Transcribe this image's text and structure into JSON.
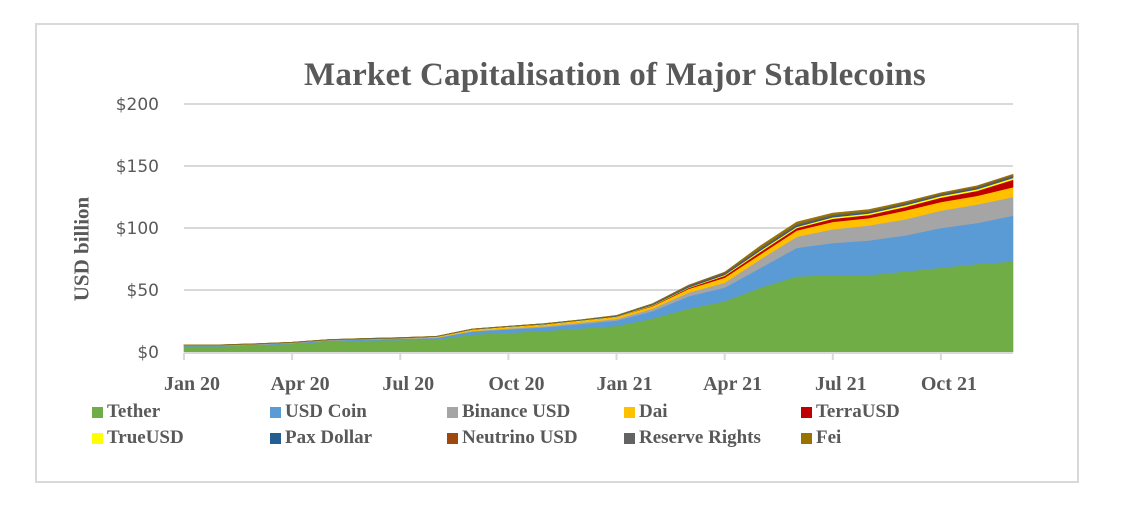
{
  "chart_data": {
    "type": "area",
    "stacked": true,
    "title": "Market Capitalisation of Major Stablecoins",
    "xlabel": "",
    "ylabel": "USD billion",
    "ylim": [
      0,
      200
    ],
    "yticks": [
      0,
      50,
      100,
      150,
      200
    ],
    "ytick_labels": [
      "$0",
      "$50",
      "$100",
      "$150",
      "$200"
    ],
    "grid": true,
    "legend_position": "bottom",
    "x": [
      "Jan 20",
      "Feb 20",
      "Mar 20",
      "Apr 20",
      "May 20",
      "Jun 20",
      "Jul 20",
      "Aug 20",
      "Sep 20",
      "Oct 20",
      "Nov 20",
      "Dec 20",
      "Jan 21",
      "Feb 21",
      "Mar 21",
      "Apr 21",
      "May 21",
      "Jun 21",
      "Jul 21",
      "Aug 21",
      "Sep 21",
      "Oct 21",
      "Nov 21",
      "Dec 21"
    ],
    "xtick_labels": [
      "Jan 20",
      "Apr 20",
      "Jul 20",
      "Oct 20",
      "Jan 21",
      "Apr 21",
      "Jul 21",
      "Oct 21"
    ],
    "xtick_every": 3,
    "series": [
      {
        "name": "Tether",
        "color": "#70ad47",
        "values": [
          4.6,
          4.6,
          5.5,
          6.5,
          8.5,
          9.2,
          9.6,
          10,
          14,
          15.5,
          17,
          19,
          21,
          27,
          35,
          41,
          52,
          61,
          62,
          62,
          65,
          68,
          71,
          73
        ]
      },
      {
        "name": "USD Coin",
        "color": "#5b9bd5",
        "values": [
          0.5,
          0.5,
          0.5,
          0.7,
          0.8,
          1,
          1.1,
          1.4,
          2.5,
          2.8,
          3,
          3.7,
          4.5,
          6,
          10,
          11,
          16,
          23,
          26,
          28,
          29,
          32,
          33,
          37
        ]
      },
      {
        "name": "Binance USD",
        "color": "#a5a5a5",
        "values": [
          0.2,
          0.2,
          0.2,
          0.2,
          0.2,
          0.2,
          0.2,
          0.3,
          0.5,
          0.8,
          0.9,
          1,
          1.3,
          2,
          3,
          4,
          7,
          9,
          11,
          12,
          13,
          14,
          15,
          15
        ]
      },
      {
        "name": "Dai",
        "color": "#ffc000",
        "values": [
          0.1,
          0.1,
          0.1,
          0.1,
          0.1,
          0.1,
          0.2,
          0.4,
          0.9,
          1,
          1.1,
          1.3,
          1.4,
          2,
          3,
          4,
          4,
          5,
          6,
          6,
          7,
          7,
          7,
          8
        ]
      },
      {
        "name": "TerraUSD",
        "color": "#c00000",
        "values": [
          0,
          0,
          0,
          0,
          0,
          0,
          0,
          0,
          0,
          0,
          0.1,
          0.1,
          0.2,
          0.4,
          0.7,
          1.5,
          2,
          2,
          2.5,
          2.6,
          3,
          3.5,
          4,
          6
        ]
      },
      {
        "name": "TrueUSD",
        "color": "#ffff00",
        "values": [
          0.1,
          0.1,
          0.1,
          0.1,
          0.1,
          0.1,
          0.1,
          0.2,
          0.3,
          0.3,
          0.3,
          0.3,
          0.3,
          0.4,
          0.5,
          0.7,
          1,
          1,
          1.2,
          1.2,
          1.3,
          1.3,
          1.3,
          1.4
        ]
      },
      {
        "name": "Pax Dollar",
        "color": "#255e91",
        "values": [
          0.2,
          0.2,
          0.2,
          0.2,
          0.2,
          0.3,
          0.3,
          0.3,
          0.3,
          0.3,
          0.4,
          0.4,
          0.5,
          0.6,
          0.8,
          0.9,
          1,
          1,
          1,
          0.9,
          0.9,
          0.9,
          0.9,
          0.9
        ]
      },
      {
        "name": "Neutrino USD",
        "color": "#9e480e",
        "values": [
          0,
          0,
          0,
          0,
          0,
          0,
          0,
          0,
          0,
          0,
          0,
          0,
          0,
          0.1,
          0.2,
          0.3,
          0.3,
          0.3,
          0.3,
          0.3,
          0.4,
          0.4,
          0.5,
          0.6
        ]
      },
      {
        "name": "Reserve Rights",
        "color": "#636363",
        "values": [
          0.1,
          0.1,
          0.1,
          0.1,
          0.1,
          0.1,
          0.1,
          0.1,
          0.1,
          0.1,
          0.1,
          0.2,
          0.3,
          0.5,
          0.7,
          1,
          1,
          1,
          0.8,
          0.8,
          0.8,
          0.8,
          0.8,
          0.9
        ]
      },
      {
        "name": "Fei",
        "color": "#997300",
        "values": [
          0,
          0,
          0,
          0,
          0,
          0,
          0,
          0,
          0,
          0,
          0,
          0,
          0,
          0,
          0,
          0,
          1.5,
          1.5,
          1.2,
          1,
          0.7,
          0.5,
          0.5,
          0.5
        ]
      }
    ]
  },
  "colors": {
    "text": "#595959",
    "gridline": "#d9d9d9",
    "frame": "#d9d9d9"
  }
}
